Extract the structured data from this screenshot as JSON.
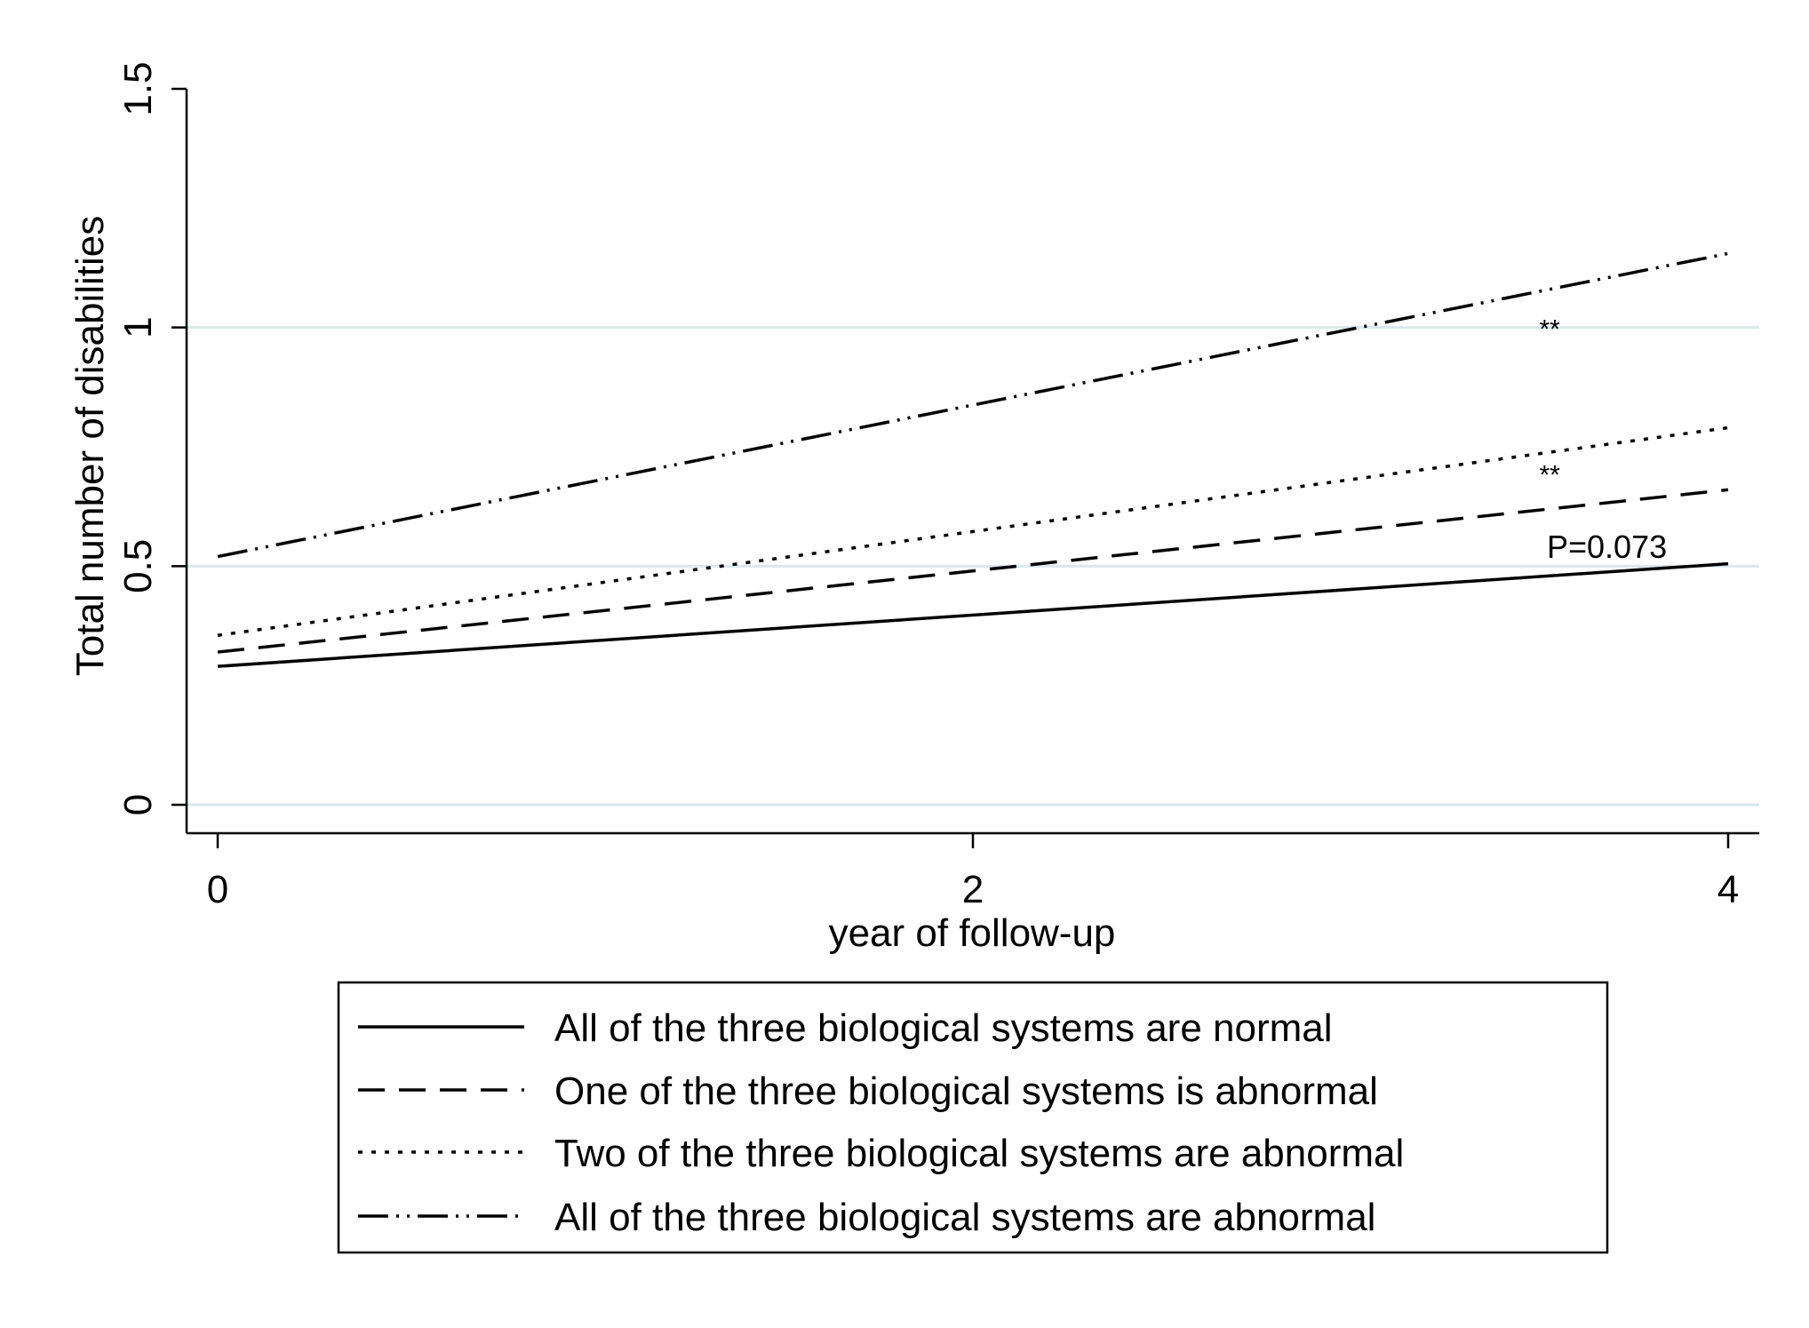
{
  "chart_data": {
    "type": "line",
    "title": "",
    "xlabel": "year of follow-up",
    "ylabel": "Total number of disabilities",
    "xlim": [
      0,
      4
    ],
    "ylim": [
      0,
      1.5
    ],
    "x_ticks": [
      0,
      2,
      4
    ],
    "x_tick_labels": [
      "0",
      "2",
      "4"
    ],
    "y_ticks": [
      0,
      0.5,
      1,
      1.5
    ],
    "y_tick_labels": [
      "0",
      "0.5",
      "1",
      "1.5"
    ],
    "grid": "horizontal",
    "legend_position": "bottom",
    "x": [
      0,
      4
    ],
    "series": [
      {
        "name": "All of the three biological systems are normal",
        "style": "solid",
        "values": [
          0.29,
          0.505
        ]
      },
      {
        "name": "One of the three biological systems is abnormal",
        "style": "dash",
        "values": [
          0.32,
          0.66
        ]
      },
      {
        "name": "Two of the three biological systems are abnormal",
        "style": "dot",
        "values": [
          0.355,
          0.79
        ]
      },
      {
        "name": "All of the three biological systems are abnormal",
        "style": "dashdotdot",
        "values": [
          0.52,
          1.155
        ]
      }
    ],
    "annotations": [
      {
        "text": "**",
        "x": 3.5,
        "y": 1.0
      },
      {
        "text": "**",
        "x": 3.5,
        "y": 0.695
      },
      {
        "text": "P=0.073",
        "x": 3.52,
        "y": 0.54
      }
    ],
    "colors": {
      "line": "#000000",
      "grid": "#dde7ea",
      "background": "#ffffff"
    }
  }
}
